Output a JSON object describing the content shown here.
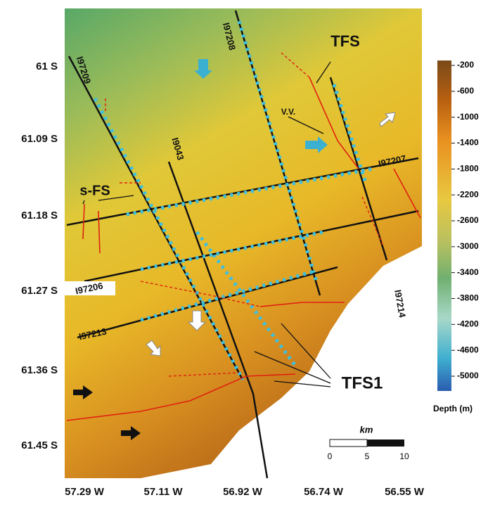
{
  "map": {
    "latitude_labels": [
      "61 S",
      "61.09 S",
      "61.18 S",
      "61.27 S",
      "61.36 S",
      "61.45 S"
    ],
    "longitude_labels": [
      "57.29 W",
      "57.11 W",
      "56.92 W",
      "56.74 W",
      "56.55 W"
    ],
    "line_labels": [
      "I97209",
      "I97208",
      "I9043",
      "I97207",
      "I97206",
      "I97213",
      "I97214"
    ],
    "annotations": [
      "TFS",
      "s-FS",
      "V.V.",
      "TFS1"
    ]
  },
  "legend": {
    "ticks": [
      -200,
      -600,
      -1000,
      -1400,
      -1800,
      -2200,
      -2600,
      -3000,
      -3400,
      -3800,
      -4200,
      -4600,
      -5000
    ],
    "title": "Depth (m)"
  },
  "scale_bar": {
    "unit": "km",
    "ticks": [
      0,
      5,
      10
    ]
  }
}
